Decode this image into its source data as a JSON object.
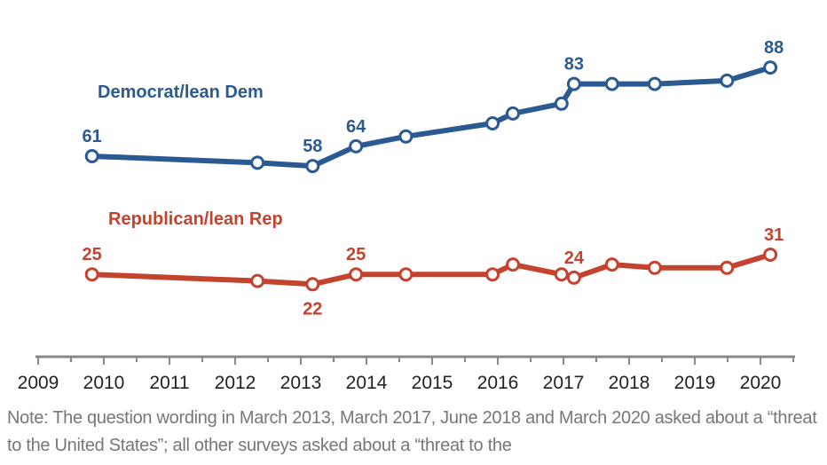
{
  "chart_data": {
    "type": "line",
    "title": "",
    "xlabel": "",
    "ylabel": "",
    "xlim": [
      2009,
      2020.6
    ],
    "x_ticks": [
      "2009",
      "2010",
      "2011",
      "2012",
      "2013",
      "2014",
      "2015",
      "2016",
      "2017",
      "2018",
      "2019",
      "2020"
    ],
    "grid": false,
    "series": [
      {
        "name": "Democrat/lean Dem",
        "color": "#2b5a93",
        "x": [
          2009.82,
          2012.34,
          2013.18,
          2013.84,
          2014.6,
          2015.92,
          2016.23,
          2016.97,
          2017.16,
          2017.74,
          2018.39,
          2019.49,
          2020.15
        ],
        "values": [
          61,
          59,
          58,
          64,
          67,
          71,
          74,
          77,
          83,
          83,
          83,
          84,
          88
        ],
        "labels": {
          "0": "61",
          "2": "58",
          "3": "64",
          "8": "83",
          "12": "88"
        }
      },
      {
        "name": "Republican/lean Rep",
        "color": "#c4432f",
        "x": [
          2009.82,
          2012.34,
          2013.18,
          2013.84,
          2014.6,
          2015.92,
          2016.23,
          2016.97,
          2017.16,
          2017.74,
          2018.39,
          2019.49,
          2020.15
        ],
        "values": [
          25,
          23,
          22,
          25,
          25,
          25,
          28,
          25,
          24,
          28,
          27,
          27,
          31
        ],
        "labels": {
          "0": "25",
          "2": "22",
          "3": "25",
          "8": "24",
          "12": "31"
        }
      }
    ]
  },
  "note": "Note: The question wording in March 2013, March 2017, June 2018 and March 2020 asked about a “threat to the United States”; all other surveys asked about a “threat to the"
}
